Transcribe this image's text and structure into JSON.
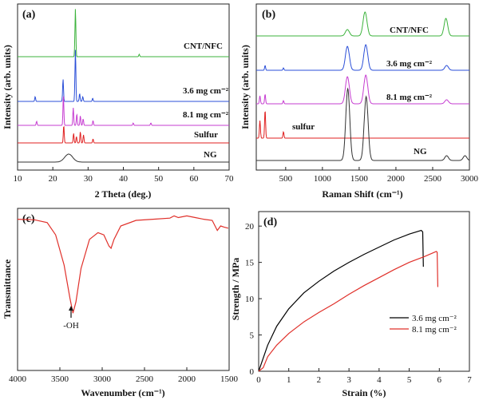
{
  "panels": {
    "a": {
      "label": "(a)",
      "xlabel": "2 Theta (deg.)",
      "ylabel": "Intensity (arb. units)",
      "xticks": [
        "10",
        "20",
        "30",
        "40",
        "50",
        "60",
        "70"
      ]
    },
    "b": {
      "label": "(b)",
      "xlabel": "Raman Shift (cm⁻¹)",
      "ylabel": "Intensity (arb. units)",
      "xticks": [
        "500",
        "1000",
        "1500",
        "2000",
        "2500",
        "3000"
      ]
    },
    "c": {
      "label": "(c)",
      "xlabel": "Wavenumber (cm⁻¹)",
      "ylabel": "Transmittance",
      "xticks": [
        "4000",
        "3500",
        "3000",
        "2500",
        "2000",
        "1500"
      ],
      "annotation": "-OH"
    },
    "d": {
      "label": "(d)",
      "xlabel": "Strain (%)",
      "ylabel": "Strength / MPa",
      "xticks": [
        "0",
        "1",
        "2",
        "3",
        "4",
        "5",
        "6",
        "7"
      ],
      "yticks": [
        "0",
        "5",
        "10",
        "15",
        "20"
      ]
    }
  },
  "colors": {
    "cnt_nfc": "#3cb33c",
    "s36": "#2b4fd8",
    "s81": "#c63cd1",
    "sulfur": "#e02020",
    "ng": "#333333",
    "ftir": "#e0302a",
    "d36": "#000000",
    "d81": "#e0302a"
  },
  "chart_data": [
    {
      "panel": "a",
      "type": "line",
      "title": "",
      "xlabel": "2 Theta (deg.)",
      "ylabel": "Intensity (arb. units)",
      "xlim": [
        10,
        70
      ],
      "grid": false,
      "y_ticks_shown": false,
      "series": [
        {
          "name": "CNT/NFC",
          "color": "#3cb33c",
          "baseline": 66,
          "peaks": [
            [
              26.4,
              60
            ],
            [
              44.5,
              3
            ]
          ]
        },
        {
          "name": "3.6 mg cm⁻²",
          "color": "#2b4fd8",
          "baseline": 122,
          "peaks": [
            [
              15.0,
              6
            ],
            [
              22.9,
              28
            ],
            [
              26.4,
              65
            ],
            [
              27.6,
              10
            ],
            [
              28.5,
              6
            ],
            [
              31.3,
              4
            ]
          ]
        },
        {
          "name": "8.1 mg cm⁻²",
          "color": "#c63cd1",
          "baseline": 152,
          "peaks": [
            [
              15.4,
              5
            ],
            [
              23.0,
              38
            ],
            [
              25.8,
              22
            ],
            [
              26.8,
              14
            ],
            [
              27.8,
              12
            ],
            [
              28.6,
              8
            ],
            [
              31.4,
              6
            ],
            [
              42.8,
              3
            ],
            [
              47.8,
              3
            ]
          ]
        },
        {
          "name": "Sulfur",
          "color": "#e02020",
          "baseline": 174,
          "peaks": [
            [
              23.1,
              22
            ],
            [
              25.9,
              12
            ],
            [
              26.7,
              8
            ],
            [
              27.8,
              14
            ],
            [
              28.7,
              10
            ],
            [
              31.4,
              5
            ]
          ]
        },
        {
          "name": "NG",
          "color": "#333333",
          "baseline": 198,
          "peaks": [
            [
              24.5,
              10
            ]
          ]
        }
      ]
    },
    {
      "panel": "b",
      "type": "line",
      "title": "",
      "xlabel": "Raman Shift (cm⁻¹)",
      "ylabel": "Intensity (arb. units)",
      "xlim": [
        100,
        3000
      ],
      "grid": false,
      "y_ticks_shown": false,
      "series": [
        {
          "name": "CNT/NFC",
          "color": "#3cb33c",
          "baseline": 40,
          "peaks": [
            [
              1340,
              8
            ],
            [
              1580,
              30
            ],
            [
              2680,
              22
            ]
          ]
        },
        {
          "name": "3.6 mg cm⁻²",
          "color": "#2b4fd8",
          "baseline": 83,
          "peaks": [
            [
              220,
              6
            ],
            [
              470,
              3
            ],
            [
              1340,
              30
            ],
            [
              1590,
              32
            ],
            [
              2690,
              6
            ]
          ]
        },
        {
          "name": "8.1 mg cm⁻²",
          "color": "#c63cd1",
          "baseline": 125,
          "peaks": [
            [
              150,
              10
            ],
            [
              220,
              12
            ],
            [
              470,
              4
            ],
            [
              1340,
              34
            ],
            [
              1590,
              36
            ],
            [
              2690,
              5
            ]
          ]
        },
        {
          "name": "sulfur",
          "color": "#e02020",
          "baseline": 168,
          "peaks": [
            [
              150,
              22
            ],
            [
              220,
              35
            ],
            [
              470,
              8
            ]
          ]
        },
        {
          "name": "NG",
          "color": "#333333",
          "baseline": 196,
          "peaks": [
            [
              1345,
              90
            ],
            [
              1595,
              80
            ],
            [
              2690,
              6
            ],
            [
              2940,
              6
            ]
          ]
        }
      ]
    },
    {
      "panel": "c",
      "type": "line",
      "title": "",
      "xlabel": "Wavenumber (cm⁻¹)",
      "ylabel": "Transmittance",
      "xlim": [
        4000,
        1500
      ],
      "reversed_x": true,
      "grid": false,
      "y_ticks_shown": false,
      "annotation": {
        "text": "-OH",
        "x": 3350
      },
      "series": [
        {
          "name": "",
          "color": "#e0302a",
          "points": [
            [
              4000,
              0.96
            ],
            [
              3800,
              0.955
            ],
            [
              3650,
              0.93
            ],
            [
              3550,
              0.82
            ],
            [
              3450,
              0.55
            ],
            [
              3380,
              0.25
            ],
            [
              3345,
              0.12
            ],
            [
              3310,
              0.22
            ],
            [
              3250,
              0.52
            ],
            [
              3150,
              0.78
            ],
            [
              3050,
              0.84
            ],
            [
              2980,
              0.82
            ],
            [
              2920,
              0.72
            ],
            [
              2895,
              0.7
            ],
            [
              2860,
              0.78
            ],
            [
              2780,
              0.9
            ],
            [
              2600,
              0.95
            ],
            [
              2400,
              0.96
            ],
            [
              2200,
              0.97
            ],
            [
              2150,
              0.99
            ],
            [
              2100,
              0.975
            ],
            [
              2000,
              0.99
            ],
            [
              1900,
              0.975
            ],
            [
              1800,
              0.96
            ],
            [
              1700,
              0.95
            ],
            [
              1640,
              0.86
            ],
            [
              1600,
              0.9
            ],
            [
              1560,
              0.89
            ],
            [
              1510,
              0.88
            ]
          ]
        }
      ]
    },
    {
      "panel": "d",
      "type": "line",
      "title": "",
      "xlabel": "Strain (%)",
      "ylabel": "Strength / MPa",
      "xlim": [
        0,
        7
      ],
      "ylim": [
        0,
        22
      ],
      "grid": false,
      "legend": "right",
      "series": [
        {
          "name": "3.6 mg cm⁻²",
          "color": "#000000",
          "points": [
            [
              0,
              0
            ],
            [
              0.1,
              1.2
            ],
            [
              0.3,
              3.6
            ],
            [
              0.6,
              6.2
            ],
            [
              1,
              8.6
            ],
            [
              1.5,
              10.8
            ],
            [
              2,
              12.4
            ],
            [
              2.5,
              13.8
            ],
            [
              3,
              15
            ],
            [
              3.5,
              16.1
            ],
            [
              4,
              17.1
            ],
            [
              4.5,
              18.1
            ],
            [
              5,
              18.9
            ],
            [
              5.4,
              19.4
            ],
            [
              5.45,
              19.2
            ],
            [
              5.47,
              14.4
            ]
          ]
        },
        {
          "name": "8.1 mg cm⁻²",
          "color": "#e0302a",
          "points": [
            [
              0,
              0
            ],
            [
              0.15,
              0.5
            ],
            [
              0.3,
              2
            ],
            [
              0.6,
              3.6
            ],
            [
              1,
              5.2
            ],
            [
              1.5,
              6.8
            ],
            [
              2,
              8.1
            ],
            [
              2.5,
              9.3
            ],
            [
              3,
              10.6
            ],
            [
              3.5,
              11.8
            ],
            [
              4,
              12.9
            ],
            [
              4.5,
              14
            ],
            [
              5,
              15
            ],
            [
              5.5,
              15.8
            ],
            [
              5.9,
              16.5
            ],
            [
              5.93,
              16.4
            ],
            [
              5.95,
              11.6
            ]
          ]
        }
      ]
    }
  ]
}
